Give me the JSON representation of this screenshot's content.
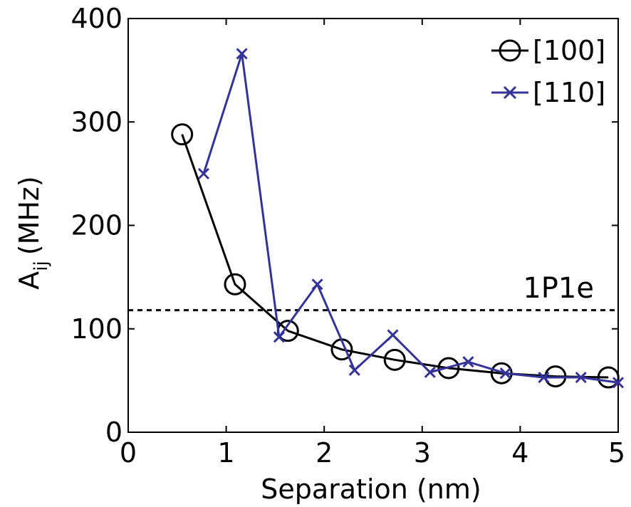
{
  "chart_data": {
    "type": "line",
    "xlabel": "Separation (nm)",
    "ylabel": "A",
    "ylabel_subscript": "ij",
    "ylabel_unit": "(MHz)",
    "xlim": [
      0,
      5
    ],
    "ylim": [
      0,
      400
    ],
    "xticks": [
      "0",
      "1",
      "2",
      "3",
      "4",
      "5"
    ],
    "yticks": [
      "0",
      "100",
      "200",
      "300",
      "400"
    ],
    "grid": false,
    "legend_position": "top-right",
    "series": [
      {
        "name": "[100]",
        "color": "#000000",
        "marker": "circle",
        "x": [
          0.55,
          1.09,
          1.63,
          2.18,
          2.72,
          3.27,
          3.81,
          4.36,
          4.9
        ],
        "y": [
          288,
          143,
          98,
          80,
          70,
          62,
          57,
          54,
          53
        ]
      },
      {
        "name": "[110]",
        "color": "#333399",
        "marker": "x",
        "x": [
          0.77,
          1.16,
          1.54,
          1.93,
          2.31,
          2.7,
          3.08,
          3.47,
          3.85,
          4.24,
          4.62,
          5.0
        ],
        "y": [
          250,
          366,
          92,
          143,
          60,
          94,
          58,
          68,
          57,
          53,
          53,
          48
        ]
      }
    ],
    "reference_line": {
      "y": 118,
      "label": "1P1e",
      "style": "dashed",
      "color": "#000000"
    }
  }
}
